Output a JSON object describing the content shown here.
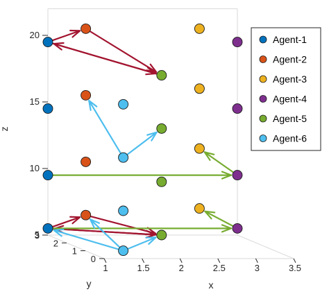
{
  "chart_data": {
    "type": "scatter",
    "title": "",
    "xlabel": "x",
    "ylabel": "y",
    "zlabel": "z",
    "xlim": [
      1,
      3.5
    ],
    "ylim": [
      0,
      3
    ],
    "zlim": [
      5,
      22
    ],
    "x_ticks": [
      "1",
      "1.5",
      "2",
      "2.5",
      "3",
      "3.5"
    ],
    "y_ticks": [
      "0",
      "1",
      "2",
      "3"
    ],
    "z_ticks": [
      "5",
      "10",
      "15",
      "20"
    ],
    "grid": false,
    "legend_position": "right",
    "series": [
      {
        "name": "Agent-1",
        "color": "#0072BD",
        "points": [
          [
            1,
            3,
            5.5
          ],
          [
            1,
            3,
            9.5
          ],
          [
            1,
            3,
            14.5
          ],
          [
            1,
            3,
            19.5
          ]
        ]
      },
      {
        "name": "Agent-2",
        "color": "#D95319",
        "points": [
          [
            1.5,
            3,
            6.5
          ],
          [
            1.5,
            3,
            10.5
          ],
          [
            1.5,
            3,
            15.5
          ],
          [
            1.5,
            3,
            20.5
          ]
        ]
      },
      {
        "name": "Agent-3",
        "color": "#EDB120",
        "points": [
          [
            3,
            3,
            7
          ],
          [
            3,
            3,
            11.5
          ],
          [
            3,
            3,
            16
          ],
          [
            3,
            3,
            20.5
          ]
        ]
      },
      {
        "name": "Agent-4",
        "color": "#7E2F8E",
        "points": [
          [
            3.5,
            3,
            5.5
          ],
          [
            3.5,
            3,
            9.5
          ],
          [
            3.5,
            3,
            14.5
          ],
          [
            3.5,
            3,
            19.5
          ]
        ]
      },
      {
        "name": "Agent-5",
        "color": "#77AC30",
        "points": [
          [
            2.5,
            3,
            5
          ],
          [
            2.5,
            3,
            9
          ],
          [
            2.5,
            3,
            13
          ],
          [
            2.5,
            3,
            17
          ]
        ]
      },
      {
        "name": "Agent-6",
        "color": "#4DBEEE",
        "points": [
          [
            1.5,
            1,
            5
          ],
          [
            1.5,
            1,
            8
          ],
          [
            1.5,
            1,
            12
          ],
          [
            1.5,
            1,
            16
          ]
        ]
      }
    ],
    "arrows": [
      {
        "color": "#A2142F",
        "from": [
          1,
          3,
          19.5
        ],
        "to": [
          1.5,
          3,
          20.5
        ]
      },
      {
        "color": "#A2142F",
        "from": [
          1,
          3,
          19.5
        ],
        "to": [
          2.5,
          3,
          17
        ]
      },
      {
        "color": "#A2142F",
        "from": [
          1.5,
          3,
          20.5
        ],
        "to": [
          2.5,
          3,
          17
        ]
      },
      {
        "color": "#A2142F",
        "from": [
          2.5,
          3,
          17
        ],
        "to": [
          1,
          3,
          19.5
        ]
      },
      {
        "color": "#4DBEEE",
        "from": [
          1.5,
          1,
          12
        ],
        "to": [
          1.5,
          3,
          15.5
        ]
      },
      {
        "color": "#4DBEEE",
        "from": [
          1.5,
          1,
          12
        ],
        "to": [
          2.5,
          3,
          13
        ]
      },
      {
        "color": "#77AC30",
        "from": [
          1,
          3,
          9.5
        ],
        "to": [
          3.5,
          3,
          9.5
        ]
      },
      {
        "color": "#77AC30",
        "from": [
          3.5,
          3,
          9.5
        ],
        "to": [
          3,
          3,
          11.5
        ]
      },
      {
        "color": "#A2142F",
        "from": [
          1,
          3,
          5.5
        ],
        "to": [
          1.5,
          3,
          6.5
        ]
      },
      {
        "color": "#A2142F",
        "from": [
          1,
          3,
          5.5
        ],
        "to": [
          2.5,
          3,
          5
        ]
      },
      {
        "color": "#A2142F",
        "from": [
          1.5,
          3,
          6.5
        ],
        "to": [
          2.5,
          3,
          5
        ]
      },
      {
        "color": "#A2142F",
        "from": [
          2.5,
          3,
          5
        ],
        "to": [
          1,
          3,
          5.5
        ]
      },
      {
        "color": "#77AC30",
        "from": [
          1,
          3,
          5.5
        ],
        "to": [
          3.5,
          3,
          5.5
        ]
      },
      {
        "color": "#77AC30",
        "from": [
          3.5,
          3,
          5.5
        ],
        "to": [
          3,
          3,
          7
        ]
      },
      {
        "color": "#4DBEEE",
        "from": [
          1.5,
          1,
          5
        ],
        "to": [
          1.5,
          3,
          6.5
        ]
      },
      {
        "color": "#4DBEEE",
        "from": [
          1.5,
          1,
          5
        ],
        "to": [
          2.5,
          3,
          5
        ]
      },
      {
        "color": "#4DBEEE",
        "from": [
          1.5,
          1,
          5
        ],
        "to": [
          1,
          3,
          5.5
        ]
      }
    ]
  }
}
